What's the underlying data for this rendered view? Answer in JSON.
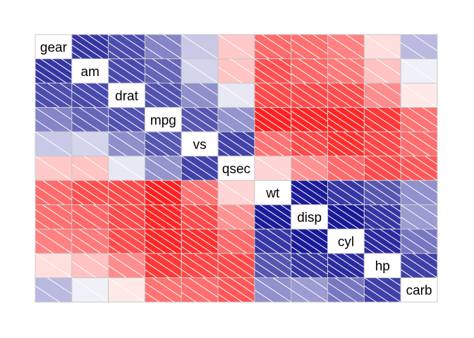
{
  "chart_data": {
    "type": "heatmap",
    "variables": [
      "gear",
      "am",
      "drat",
      "mpg",
      "vs",
      "qsec",
      "wt",
      "disp",
      "cyl",
      "hp",
      "carb"
    ],
    "matrix": [
      [
        1.0,
        0.79,
        0.7,
        0.48,
        0.21,
        -0.21,
        -0.58,
        -0.56,
        -0.49,
        -0.13,
        0.27
      ],
      [
        0.79,
        1.0,
        0.71,
        0.6,
        0.17,
        -0.23,
        -0.69,
        -0.59,
        -0.52,
        -0.24,
        0.06
      ],
      [
        0.7,
        0.71,
        1.0,
        0.68,
        0.44,
        0.09,
        -0.71,
        -0.71,
        -0.7,
        -0.45,
        -0.09
      ],
      [
        0.48,
        0.6,
        0.68,
        1.0,
        0.66,
        0.42,
        -0.87,
        -0.85,
        -0.85,
        -0.78,
        -0.55
      ],
      [
        0.21,
        0.17,
        0.44,
        0.66,
        1.0,
        0.74,
        -0.55,
        -0.71,
        -0.81,
        -0.72,
        -0.57
      ],
      [
        -0.21,
        -0.23,
        0.09,
        0.42,
        0.74,
        1.0,
        -0.17,
        -0.43,
        -0.59,
        -0.71,
        -0.66
      ],
      [
        -0.58,
        -0.69,
        -0.71,
        -0.87,
        -0.55,
        -0.17,
        1.0,
        0.89,
        0.78,
        0.66,
        0.43
      ],
      [
        -0.56,
        -0.59,
        -0.71,
        -0.85,
        -0.71,
        -0.43,
        0.89,
        1.0,
        0.9,
        0.79,
        0.39
      ],
      [
        -0.49,
        -0.52,
        -0.7,
        -0.85,
        -0.81,
        -0.59,
        0.78,
        0.9,
        1.0,
        0.83,
        0.53
      ],
      [
        -0.13,
        -0.24,
        -0.45,
        -0.78,
        -0.72,
        -0.71,
        0.66,
        0.79,
        0.83,
        1.0,
        0.75
      ],
      [
        0.27,
        0.06,
        -0.09,
        -0.55,
        -0.57,
        -0.66,
        0.43,
        0.39,
        0.53,
        0.75,
        1.0
      ]
    ],
    "color_scale": {
      "negative": "#ff0000",
      "neutral": "#ffffff",
      "positive": "#00008b",
      "range": [
        -1,
        1
      ]
    },
    "grid_color": "#c8c8c8",
    "hatch": "diagonal white lines, more lines for stronger correlation",
    "diagonal_shows_variable_names": true,
    "legend": "none"
  }
}
